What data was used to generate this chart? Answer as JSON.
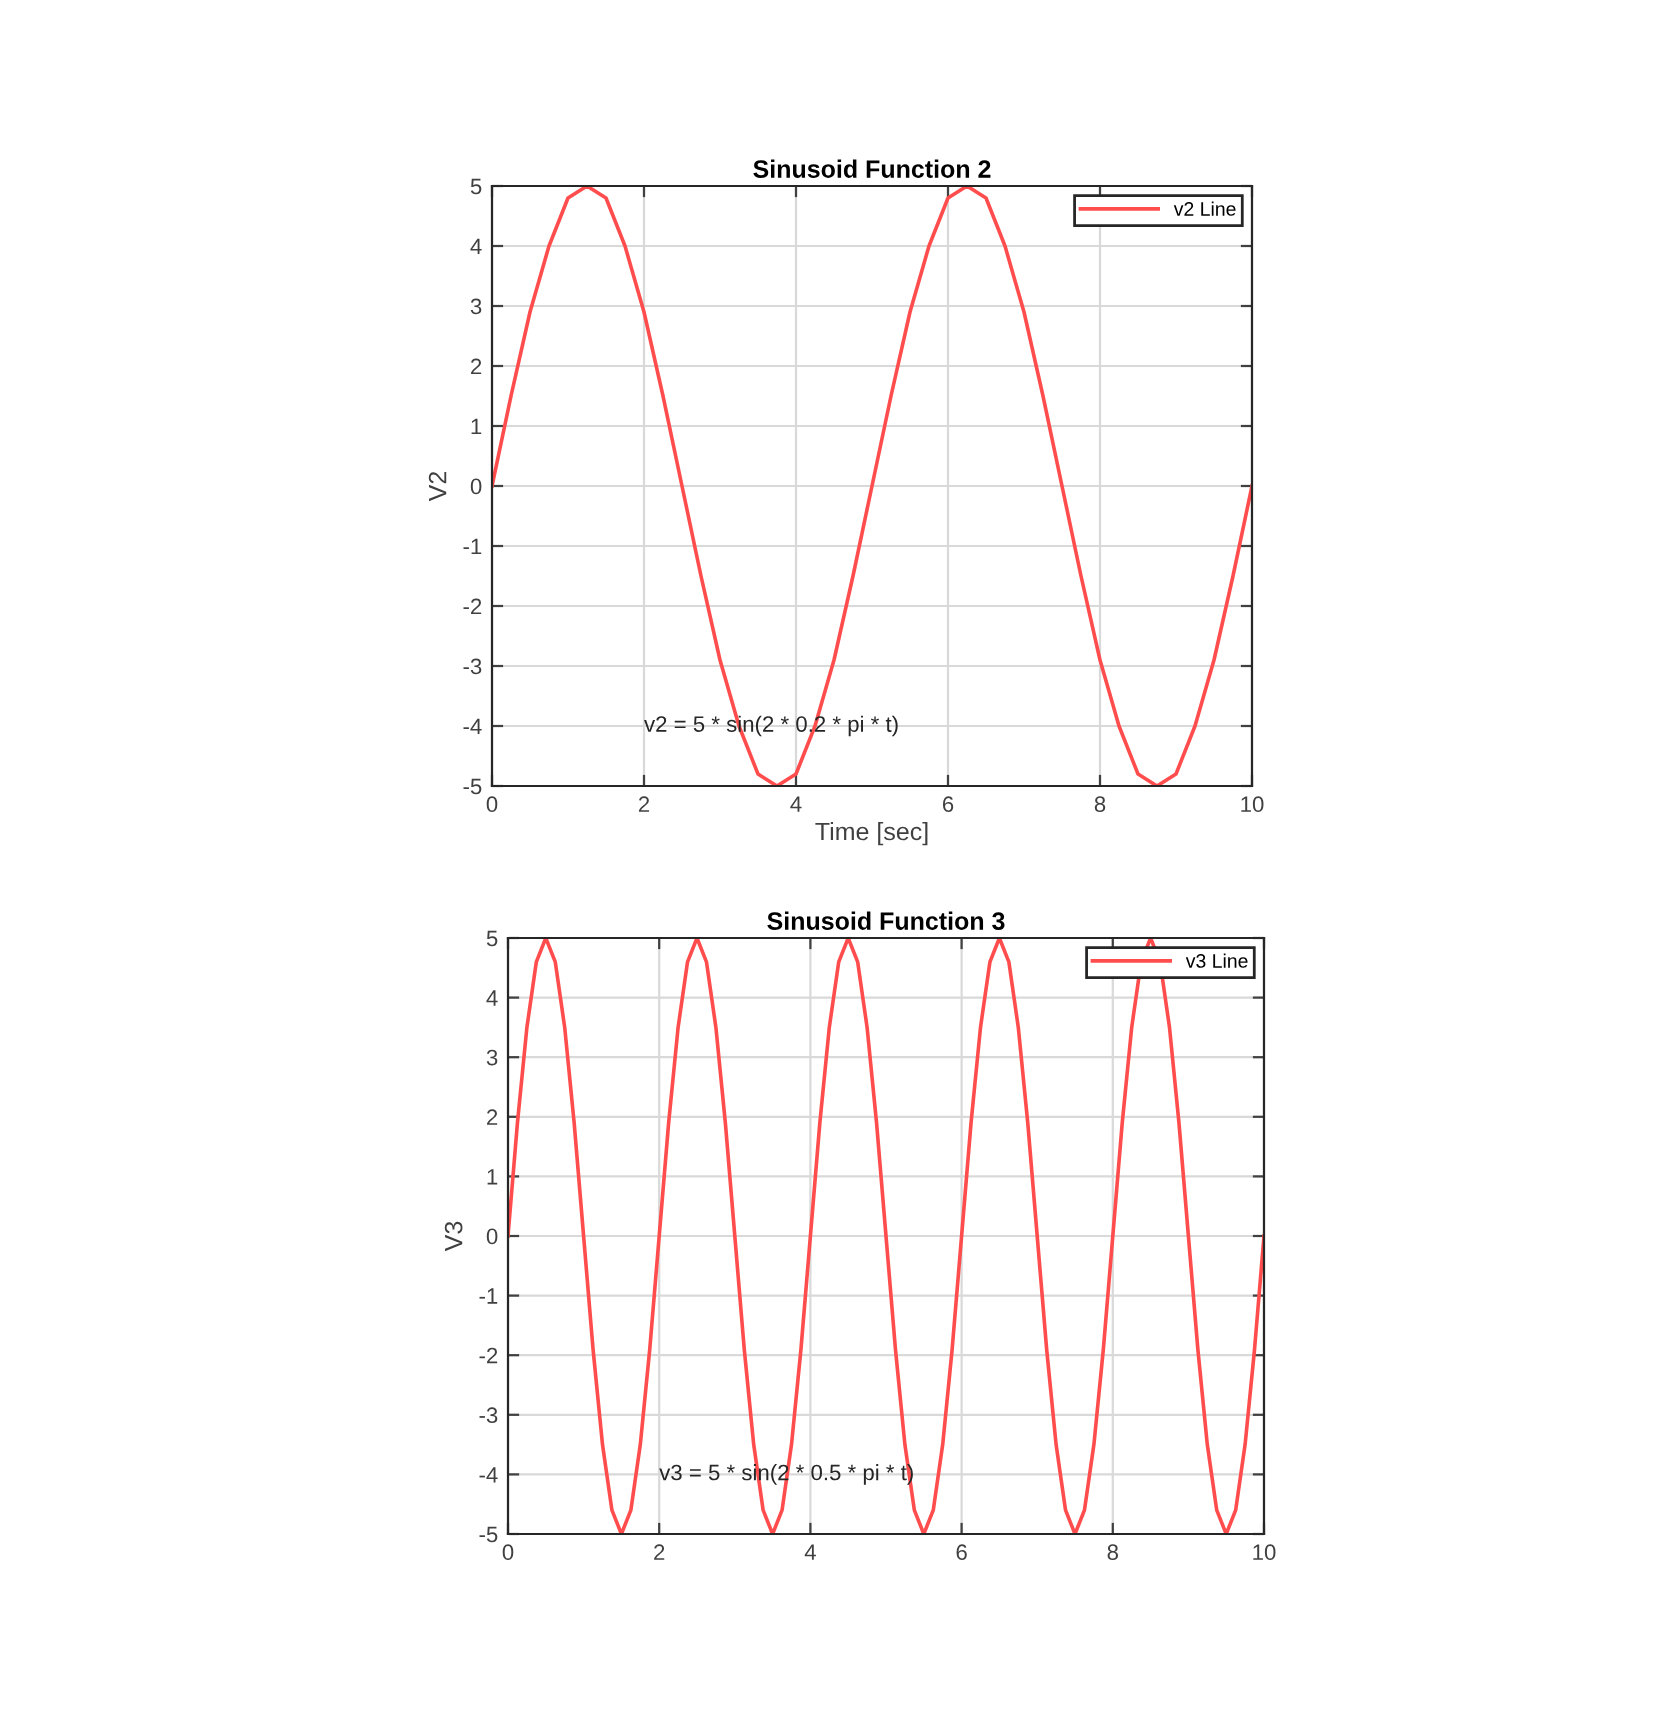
{
  "chart_data": [
    {
      "type": "line",
      "title": "Sinusoid Function 2",
      "xlabel": "Time [sec]",
      "ylabel": "V2",
      "annotations": [
        "v2 = 5 * sin(2 * 0.2 * pi * t)"
      ],
      "x": [
        0,
        0.25,
        0.5,
        0.75,
        1,
        1.25,
        1.5,
        1.75,
        2,
        2.25,
        2.5,
        2.75,
        3,
        3.25,
        3.5,
        3.75,
        4,
        4.25,
        4.5,
        4.75,
        5,
        5.25,
        5.5,
        5.75,
        6,
        6.25,
        6.5,
        6.75,
        7,
        7.25,
        7.5,
        7.75,
        8,
        8.25,
        8.5,
        8.75,
        9,
        9.25,
        9.5,
        9.75,
        10
      ],
      "series": [
        {
          "name": "v2 Line",
          "color": "#ff4d4d",
          "values": [
            0,
            1.5,
            2.9,
            4,
            4.8,
            5,
            4.8,
            4,
            2.9,
            1.5,
            0,
            -1.5,
            -2.9,
            -4,
            -4.8,
            -5,
            -4.8,
            -4,
            -2.9,
            -1.5,
            0,
            1.5,
            2.9,
            4,
            4.8,
            5,
            4.8,
            4,
            2.9,
            1.5,
            0,
            -1.5,
            -2.9,
            -4,
            -4.8,
            -5,
            -4.8,
            -4,
            -2.9,
            -1.5,
            0
          ]
        }
      ],
      "xlim": [
        0,
        10
      ],
      "xticks": [
        0,
        2,
        4,
        6,
        8,
        10
      ],
      "ylim": [
        -5,
        5
      ],
      "yticks": [
        -5,
        -4,
        -3,
        -2,
        -1,
        0,
        1,
        2,
        3,
        4,
        5
      ],
      "grid": true,
      "legend": "top right",
      "marker": "none",
      "line_style": "solid"
    },
    {
      "type": "line",
      "title": "Sinusoid Function 3",
      "ylabel": "V3",
      "annotations": [
        "v3 = 5 * sin(2 * 0.5 * pi * t)"
      ],
      "x": [
        0,
        0.125,
        0.25,
        0.375,
        0.5,
        0.625,
        0.75,
        0.875,
        1,
        1.125,
        1.25,
        1.375,
        1.5,
        1.625,
        1.75,
        1.875,
        2,
        2.125,
        2.25,
        2.375,
        2.5,
        2.625,
        2.75,
        2.875,
        3,
        3.125,
        3.25,
        3.375,
        3.5,
        3.625,
        3.75,
        3.875,
        4,
        4.125,
        4.25,
        4.375,
        4.5,
        4.625,
        4.75,
        4.875,
        5,
        5.125,
        5.25,
        5.375,
        5.5,
        5.625,
        5.75,
        5.875,
        6,
        6.125,
        6.25,
        6.375,
        6.5,
        6.625,
        6.75,
        6.875,
        7,
        7.125,
        7.25,
        7.375,
        7.5,
        7.625,
        7.75,
        7.875,
        8,
        8.125,
        8.25,
        8.375,
        8.5,
        8.625,
        8.75,
        8.875,
        9,
        9.125,
        9.25,
        9.375,
        9.5,
        9.625,
        9.75,
        9.875,
        10
      ],
      "series": [
        {
          "name": "v3 Line",
          "color": "#ff4d4d",
          "values": [
            0,
            1.9,
            3.5,
            4.6,
            5,
            4.6,
            3.5,
            1.9,
            0,
            -1.9,
            -3.5,
            -4.6,
            -5,
            -4.6,
            -3.5,
            -1.9,
            0,
            1.9,
            3.5,
            4.6,
            5,
            4.6,
            3.5,
            1.9,
            0,
            -1.9,
            -3.5,
            -4.6,
            -5,
            -4.6,
            -3.5,
            -1.9,
            0,
            1.9,
            3.5,
            4.6,
            5,
            4.6,
            3.5,
            1.9,
            0,
            -1.9,
            -3.5,
            -4.6,
            -5,
            -4.6,
            -3.5,
            -1.9,
            0,
            1.9,
            3.5,
            4.6,
            5,
            4.6,
            3.5,
            1.9,
            0,
            -1.9,
            -3.5,
            -4.6,
            -5,
            -4.6,
            -3.5,
            -1.9,
            0,
            1.9,
            3.5,
            4.6,
            5,
            4.6,
            3.5,
            1.9,
            0,
            -1.9,
            -3.5,
            -4.6,
            -5,
            -4.6,
            -3.5,
            -1.9,
            0
          ]
        }
      ],
      "xlim": [
        0,
        10
      ],
      "xticks": [
        0,
        2,
        4,
        6,
        8,
        10
      ],
      "ylim": [
        -5,
        5
      ],
      "yticks": [
        -5,
        -4,
        -3,
        -2,
        -1,
        0,
        1,
        2,
        3,
        4,
        5
      ],
      "grid": true,
      "legend": "top right",
      "marker": "none",
      "line_style": "solid"
    }
  ]
}
